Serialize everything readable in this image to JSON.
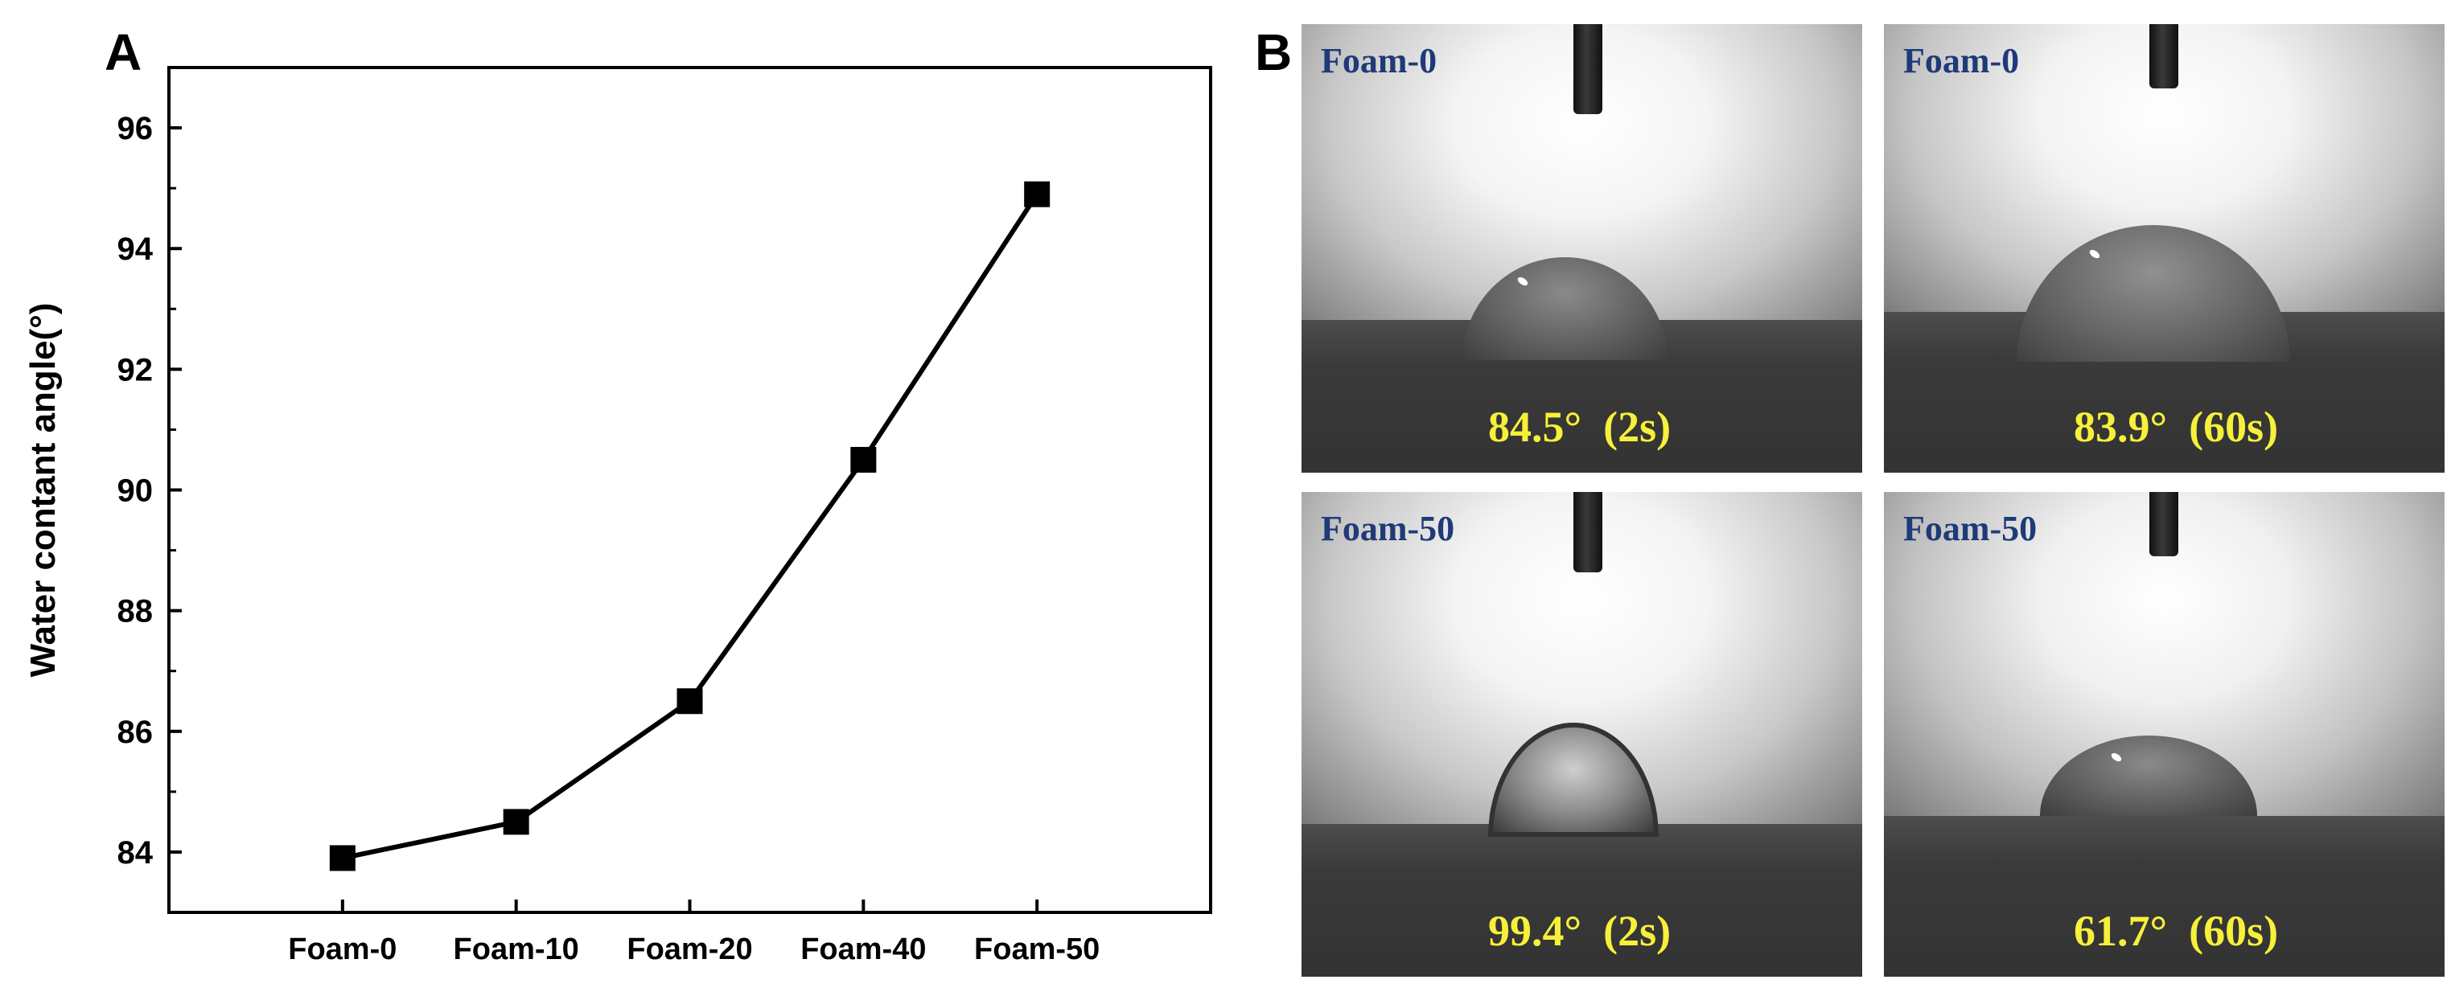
{
  "panel_a": {
    "letter": "A",
    "chart_data": {
      "type": "line",
      "categories": [
        "Foam-0",
        "Foam-10",
        "Foam-20",
        "Foam-40",
        "Foam-50"
      ],
      "series": [
        {
          "values": [
            83.9,
            84.5,
            86.5,
            90.5,
            94.9
          ]
        }
      ],
      "ylabel": "Water contant angle(°)",
      "xlabel": "",
      "ylim": [
        83,
        97
      ],
      "yticks": [
        84,
        86,
        88,
        90,
        92,
        94,
        96
      ],
      "grid": false,
      "marker": "square",
      "line_color": "#000000"
    }
  },
  "panel_b": {
    "letter": "B",
    "photos": [
      {
        "label": "Foam-0",
        "angle_text": "84.5°  (2s)"
      },
      {
        "label": "Foam-0",
        "angle_text": "83.9°  (60s)"
      },
      {
        "label": "Foam-50",
        "angle_text": "99.4°  (2s)"
      },
      {
        "label": "Foam-50",
        "angle_text": "61.7°  (60s)"
      }
    ]
  }
}
